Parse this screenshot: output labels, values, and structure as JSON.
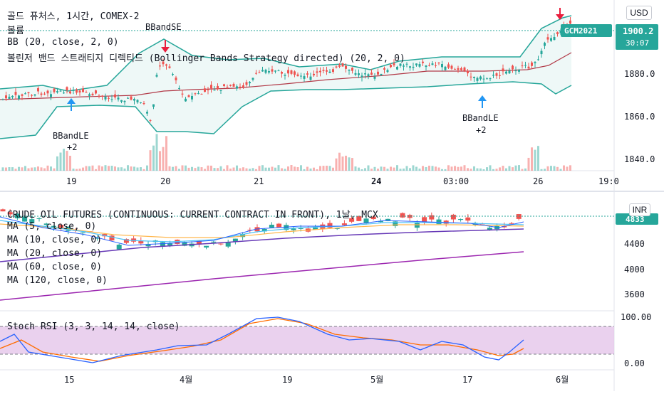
{
  "top_chart": {
    "title": "골드 퓨처스, 1시간, COMEX-2",
    "indicator_volume": "볼륨",
    "indicator_bb": "BB (20, close, 2, 0)",
    "indicator_strategy": "볼린저 밴드 스트래티지 디렉티드 (Bollinger Bands Strategy directed) (20, 2, 0)",
    "currency": "USD",
    "symbol_badge": "GCM2021",
    "last_price": "1900.2",
    "countdown": "30:07",
    "y_ticks": [
      "1880.0",
      "1860.0",
      "1840.0"
    ],
    "x_ticks": [
      "19",
      "20",
      "21",
      "24",
      "03:00",
      "26",
      "19:0"
    ],
    "signals": [
      {
        "text": "BBandSE",
        "type": "short"
      },
      {
        "text": "BBandLE",
        "qty": "+2",
        "type": "long"
      },
      {
        "text": "BBandLE",
        "qty": "+2",
        "type": "long"
      }
    ],
    "colors": {
      "up": "#26a69a",
      "down": "#ef5350",
      "band": "#26a69a",
      "basis": "#b23a48",
      "long_arrow": "#2196f3",
      "short_arrow": "#e91e3d",
      "badge": "#26a69a"
    }
  },
  "bottom_chart": {
    "title": "CRUDE OIL FUTURES (CONTINUOUS: CURRENT CONTRACT IN FRONT), 1날, MCX",
    "ma_labels": [
      "MA (5, close, 0)",
      "MA (10, close, 0)",
      "MA (20, close, 0)",
      "MA (60, close, 0)",
      "MA (120, close, 0)"
    ],
    "currency": "INR",
    "last_price": "4833",
    "y_ticks": [
      "4400",
      "4000",
      "3600"
    ],
    "colors": {
      "ma5": "#2962ff",
      "ma10": "#4fc3f7",
      "ma20": "#ffb74d",
      "ma60": "#673ab7",
      "ma120": "#9c27b0"
    }
  },
  "oscillator": {
    "title": "Stoch RSI (3, 3, 14, 14, close)",
    "y_ticks": [
      "100.00",
      "0.00"
    ],
    "colors": {
      "k": "#2962ff",
      "d": "#ff6d00",
      "band": "#e1bee7"
    }
  },
  "bottom_x_ticks": [
    "15",
    "4월",
    "19",
    "5월",
    "17",
    "6월"
  ]
}
